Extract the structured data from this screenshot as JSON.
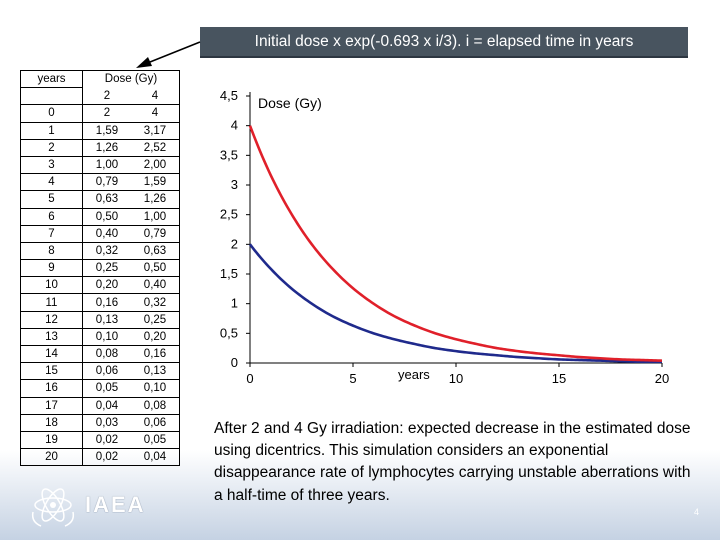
{
  "banner": {
    "text": "Initial dose x exp(-0.693 x i/3). i = elapsed time in years"
  },
  "table": {
    "col_years": "years",
    "col_dose": "Dose (Gy)",
    "dose_levels": [
      "2",
      "4"
    ],
    "rows": [
      [
        "0",
        "2",
        "4"
      ],
      [
        "1",
        "1,59",
        "3,17"
      ],
      [
        "2",
        "1,26",
        "2,52"
      ],
      [
        "3",
        "1,00",
        "2,00"
      ],
      [
        "4",
        "0,79",
        "1,59"
      ],
      [
        "5",
        "0,63",
        "1,26"
      ],
      [
        "6",
        "0,50",
        "1,00"
      ],
      [
        "7",
        "0,40",
        "0,79"
      ],
      [
        "8",
        "0,32",
        "0,63"
      ],
      [
        "9",
        "0,25",
        "0,50"
      ],
      [
        "10",
        "0,20",
        "0,40"
      ],
      [
        "11",
        "0,16",
        "0,32"
      ],
      [
        "12",
        "0,13",
        "0,25"
      ],
      [
        "13",
        "0,10",
        "0,20"
      ],
      [
        "14",
        "0,08",
        "0,16"
      ],
      [
        "15",
        "0,06",
        "0,13"
      ],
      [
        "16",
        "0,05",
        "0,10"
      ],
      [
        "17",
        "0,04",
        "0,08"
      ],
      [
        "18",
        "0,03",
        "0,06"
      ],
      [
        "19",
        "0,02",
        "0,05"
      ],
      [
        "20",
        "0,02",
        "0,04"
      ]
    ]
  },
  "chart_data": {
    "type": "line",
    "title": "Dose (Gy)",
    "xlabel": "years",
    "ylabel": "",
    "xlim": [
      0,
      20
    ],
    "ylim": [
      0,
      4.5
    ],
    "x_ticks": [
      "0",
      "5",
      "10",
      "15",
      "20"
    ],
    "y_ticks": [
      "0",
      "0,5",
      "1",
      "1,5",
      "2",
      "2,5",
      "3",
      "3,5",
      "4",
      "4,5"
    ],
    "grid": false,
    "x": [
      0,
      1,
      2,
      3,
      4,
      5,
      6,
      7,
      8,
      9,
      10,
      11,
      12,
      13,
      14,
      15,
      16,
      17,
      18,
      19,
      20
    ],
    "series": [
      {
        "color": "#1f2a8c",
        "values": [
          2,
          1.59,
          1.26,
          1.0,
          0.79,
          0.63,
          0.5,
          0.4,
          0.32,
          0.25,
          0.2,
          0.16,
          0.13,
          0.1,
          0.08,
          0.06,
          0.05,
          0.04,
          0.03,
          0.02,
          0.02
        ]
      },
      {
        "color": "#e0202a",
        "values": [
          4,
          3.17,
          2.52,
          2.0,
          1.59,
          1.26,
          1.0,
          0.79,
          0.63,
          0.5,
          0.4,
          0.32,
          0.25,
          0.2,
          0.16,
          0.13,
          0.1,
          0.08,
          0.06,
          0.05,
          0.04
        ]
      }
    ]
  },
  "caption": "After 2 and 4 Gy irradiation: expected decrease in the estimated dose using dicentrics. This simulation considers an exponential disappearance rate of lymphocytes carrying unstable aberrations with a half-time of three years.",
  "logo": {
    "text": "IAEA"
  },
  "page_number": "4"
}
